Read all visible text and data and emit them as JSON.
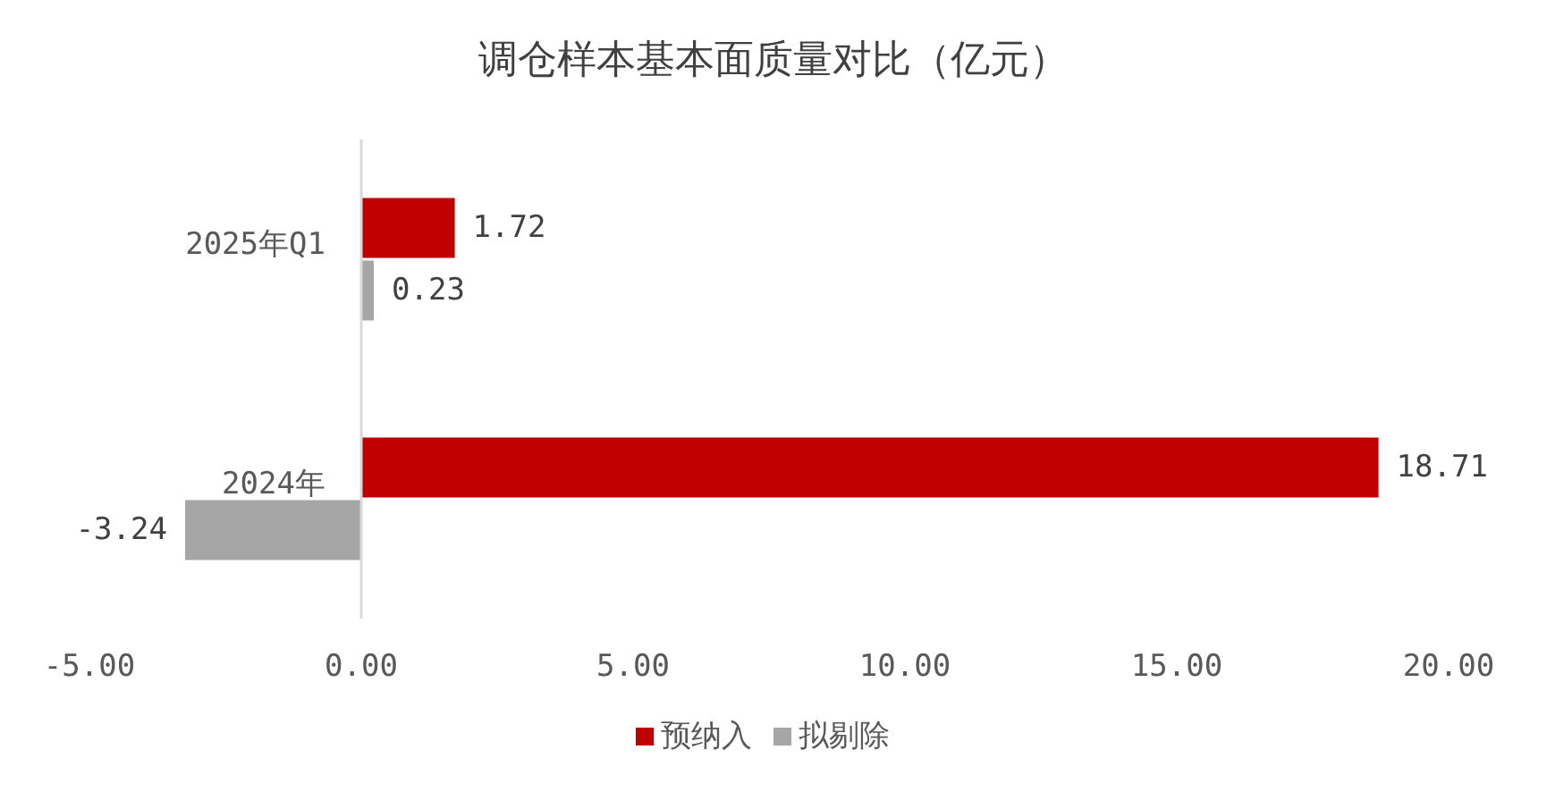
{
  "chart_data": {
    "type": "bar",
    "orientation": "horizontal",
    "title": "调仓样本基本面质量对比（亿元）",
    "categories": [
      "2025年Q1",
      "2024年"
    ],
    "series": [
      {
        "name": "预纳入",
        "color": "#c00000",
        "values": [
          1.72,
          18.71
        ]
      },
      {
        "name": "拟剔除",
        "color": "#a6a6a6",
        "values": [
          0.23,
          -3.24
        ]
      }
    ],
    "xlim": [
      -5,
      20
    ],
    "xticks": [
      {
        "value": -5,
        "label": "-5.00"
      },
      {
        "value": 0,
        "label": "0.00"
      },
      {
        "value": 5,
        "label": "5.00"
      },
      {
        "value": 10,
        "label": "10.00"
      },
      {
        "value": 15,
        "label": "15.00"
      },
      {
        "value": 20,
        "label": "20.00"
      }
    ],
    "data_labels": true,
    "legend": "bottom",
    "grid": false
  }
}
